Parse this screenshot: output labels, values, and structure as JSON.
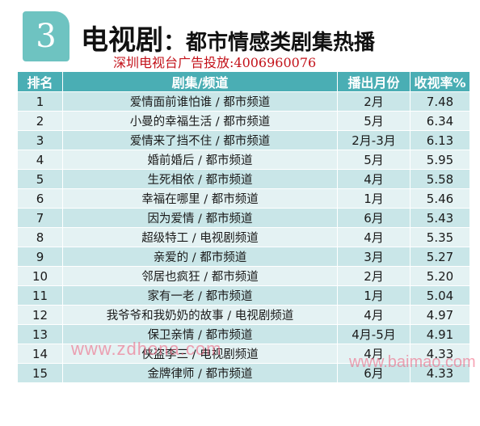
{
  "badge": "3",
  "title": {
    "main": "电视剧",
    "separator": "：",
    "sub": "都市情感类剧集热播"
  },
  "subtitle": "深圳电视台广告投放:4006960076",
  "table": {
    "headers": [
      "排名",
      "剧集/频道",
      "播出月份",
      "收视率%"
    ],
    "rows": [
      {
        "rank": "1",
        "show": "爱情面前谁怕谁 / 都市频道",
        "month": "2月",
        "rating": "7.48"
      },
      {
        "rank": "2",
        "show": "小曼的幸福生活 / 都市频道",
        "month": "5月",
        "rating": "6.34"
      },
      {
        "rank": "3",
        "show": "爱情来了挡不住 / 都市频道",
        "month": "2月-3月",
        "rating": "6.13"
      },
      {
        "rank": "4",
        "show": "婚前婚后 / 都市频道",
        "month": "5月",
        "rating": "5.95"
      },
      {
        "rank": "5",
        "show": "生死相依 / 都市频道",
        "month": "4月",
        "rating": "5.58"
      },
      {
        "rank": "6",
        "show": "幸福在哪里 / 都市频道",
        "month": "1月",
        "rating": "5.46"
      },
      {
        "rank": "7",
        "show": "因为爱情 / 都市频道",
        "month": "6月",
        "rating": "5.43"
      },
      {
        "rank": "8",
        "show": "超级特工 / 电视剧频道",
        "month": "4月",
        "rating": "5.35"
      },
      {
        "rank": "9",
        "show": "亲爱的 / 都市频道",
        "month": "3月",
        "rating": "5.27"
      },
      {
        "rank": "10",
        "show": "邻居也疯狂 / 都市频道",
        "month": "2月",
        "rating": "5.20"
      },
      {
        "rank": "11",
        "show": "家有一老 / 都市频道",
        "month": "1月",
        "rating": "5.04"
      },
      {
        "rank": "12",
        "show": "我爷爷和我奶奶的故事 / 电视剧频道",
        "month": "4月",
        "rating": "4.97"
      },
      {
        "rank": "13",
        "show": "保卫亲情 / 都市频道",
        "month": "4月-5月",
        "rating": "4.91"
      },
      {
        "rank": "14",
        "show": "侠盗李三 / 电视剧频道",
        "month": "4月",
        "rating": "4.33"
      },
      {
        "rank": "15",
        "show": "金牌律师 / 都市频道",
        "month": "6月",
        "rating": "4.33"
      }
    ]
  },
  "watermarks": [
    "www.zdhona.com",
    "www.baimao.com"
  ],
  "colors": {
    "header_bg": "#4aaeb4",
    "row_odd": "#c9e6e8",
    "row_even": "#e4f2f3",
    "badge_bg": "#6ec3c1",
    "subtitle": "#c3121a",
    "watermark": "#f05a78"
  }
}
